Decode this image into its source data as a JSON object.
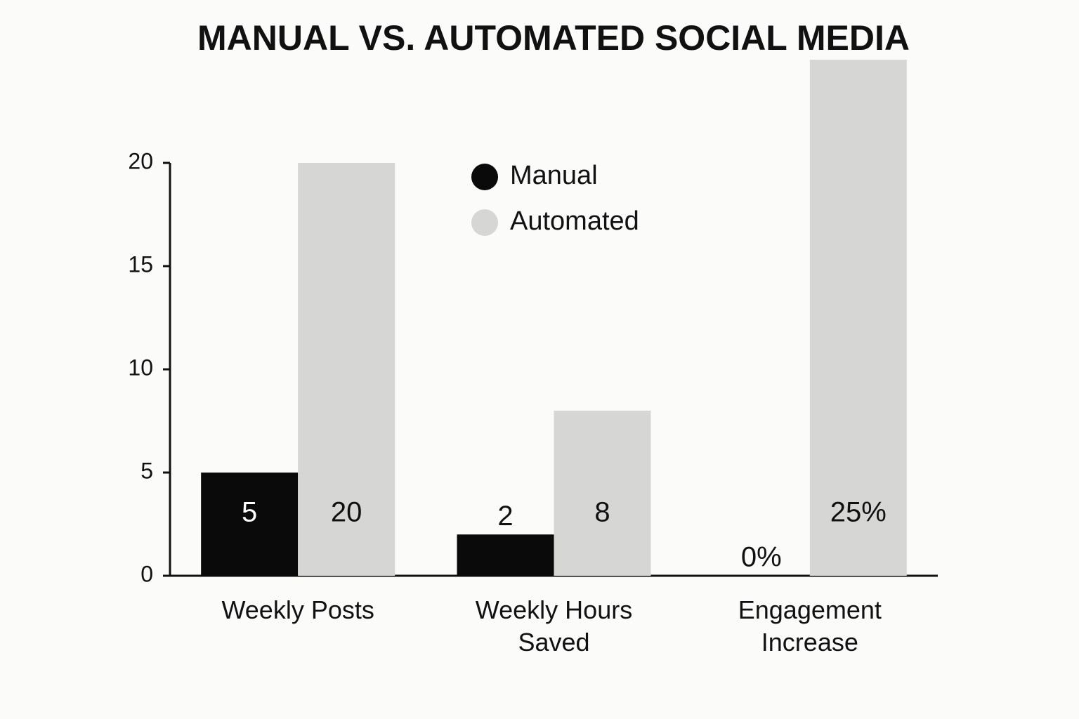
{
  "chart_data": {
    "type": "bar",
    "title": "MANUAL VS. AUTOMATED SOCIAL MEDIA",
    "categories": [
      "Weekly Posts",
      "Weekly Hours Saved",
      "Engagement Increase"
    ],
    "series": [
      {
        "name": "Manual",
        "color": "#0a0a0a",
        "values": [
          5,
          2,
          0
        ],
        "value_labels": [
          "5",
          "2",
          "0%"
        ]
      },
      {
        "name": "Automated",
        "color": "#d6d6d4",
        "values": [
          20,
          8,
          25
        ],
        "value_labels": [
          "20",
          "8",
          "25%"
        ]
      }
    ],
    "ylim": [
      0,
      20
    ],
    "yticks": [
      0,
      5,
      10,
      15,
      20
    ],
    "grid": false
  }
}
